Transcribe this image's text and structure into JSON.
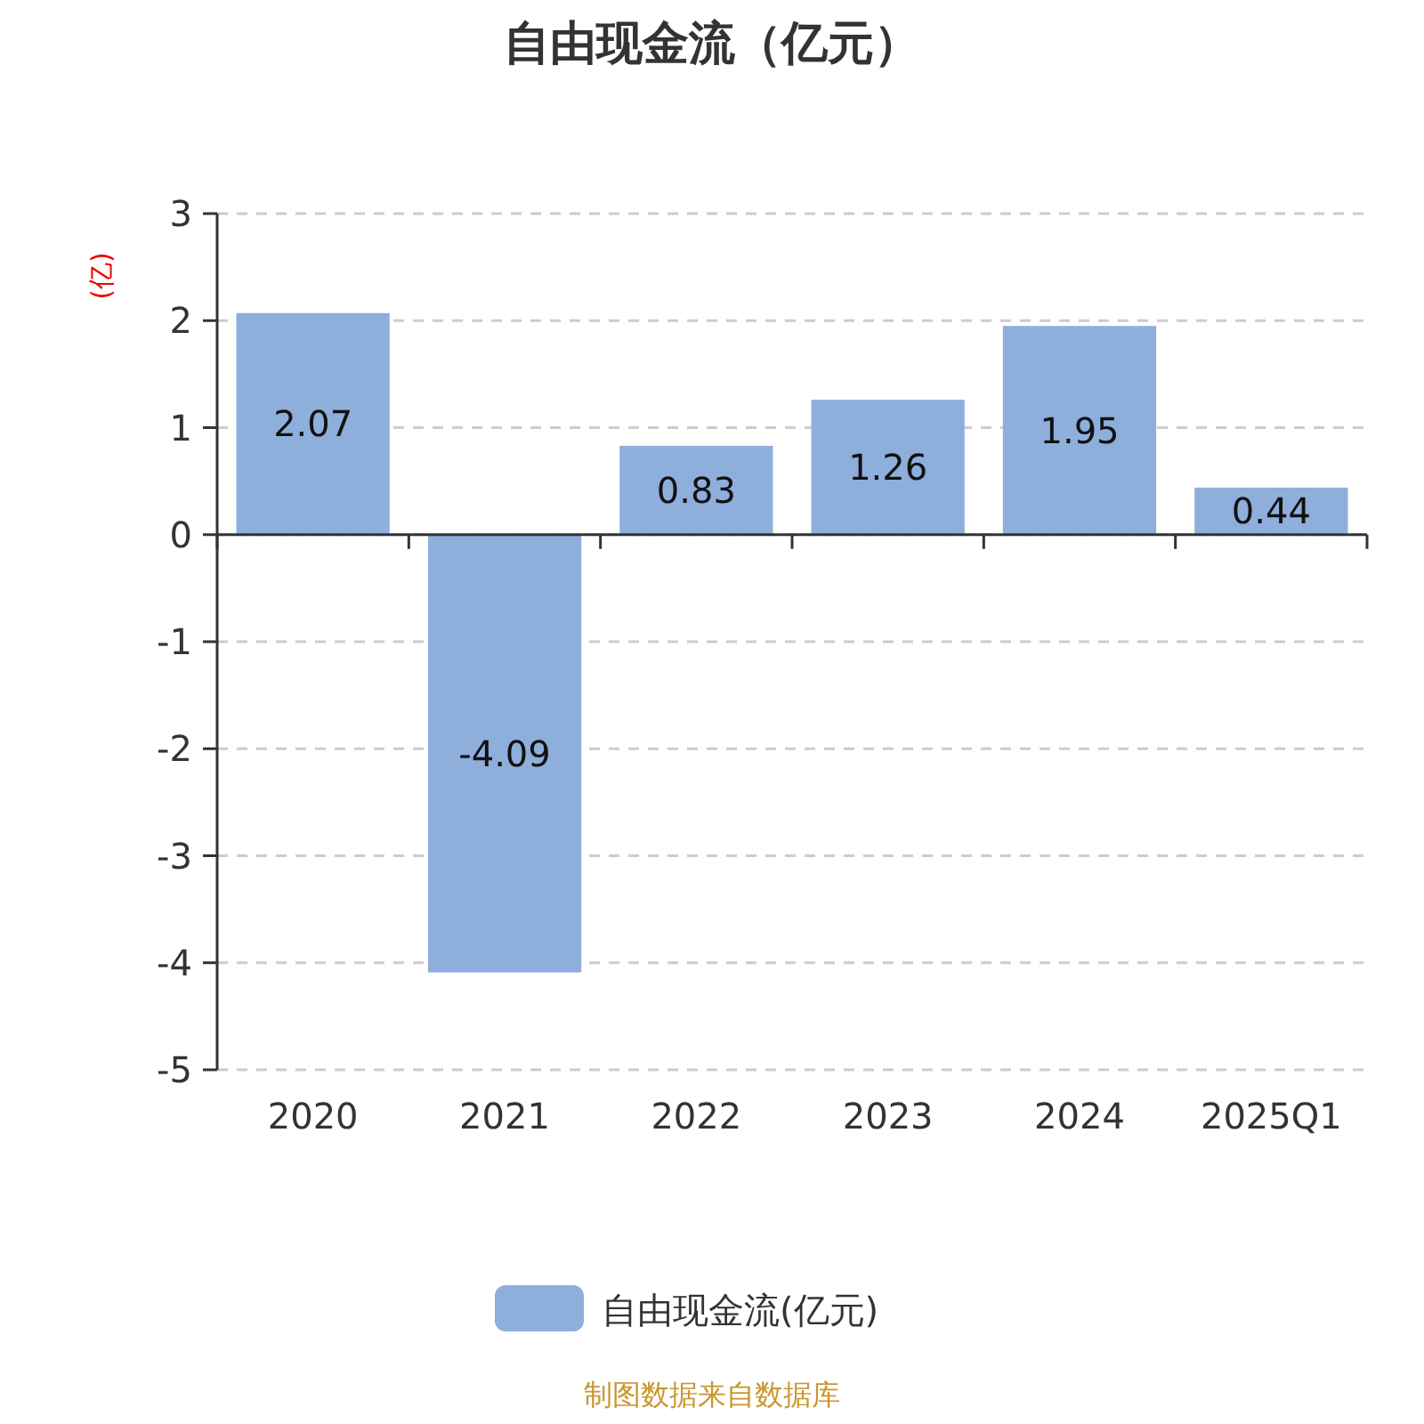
{
  "chart_data": {
    "type": "bar",
    "title": "自由现金流（亿元）",
    "ylabel": "(亿)",
    "categories": [
      "2020",
      "2021",
      "2022",
      "2023",
      "2024",
      "2025Q1"
    ],
    "series": [
      {
        "name": "自由现金流(亿元)",
        "color": "#8eaedc",
        "values": [
          2.07,
          -4.09,
          0.83,
          1.26,
          1.95,
          0.44
        ]
      }
    ],
    "ylim": [
      -5,
      3
    ],
    "yticks": [
      -5,
      -4,
      -3,
      -2,
      -1,
      0,
      1,
      2,
      3
    ],
    "grid": "y",
    "legend": "bottom",
    "data_labels": true,
    "annotations": [
      "制图数据来自数据库"
    ]
  }
}
